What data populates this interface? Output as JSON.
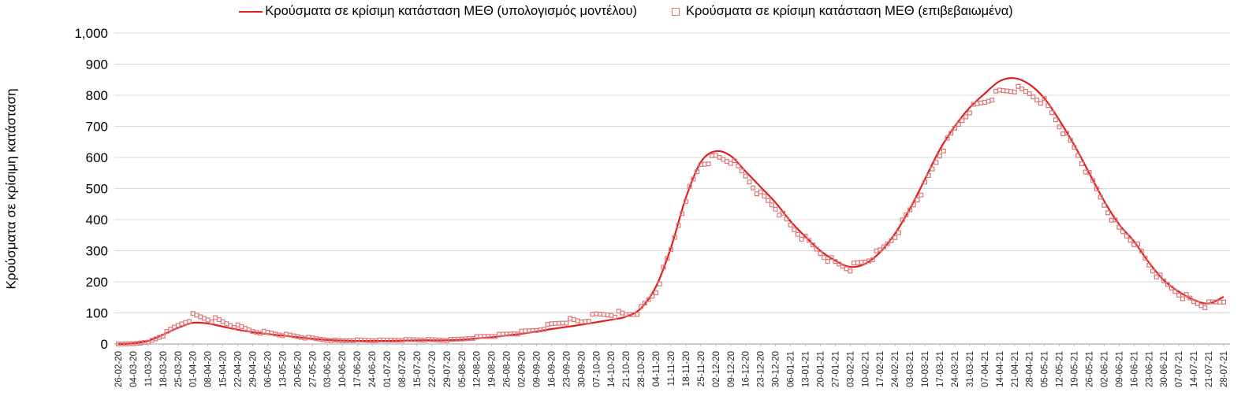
{
  "chart_data": {
    "type": "line",
    "title": "",
    "xlabel": "",
    "ylabel": "Κρούσματα σε κρίσιμη κατάσταση",
    "ylim": [
      0,
      1000
    ],
    "y_ticks": [
      "0",
      "100",
      "200",
      "300",
      "400",
      "500",
      "600",
      "700",
      "800",
      "900",
      "1,000"
    ],
    "grid": true,
    "legend_position": "top",
    "categories": [
      "26-02-20",
      "04-03-20",
      "11-03-20",
      "18-03-20",
      "25-03-20",
      "01-04-20",
      "08-04-20",
      "15-04-20",
      "22-04-20",
      "29-04-20",
      "06-05-20",
      "13-05-20",
      "20-05-20",
      "27-05-20",
      "03-06-20",
      "10-06-20",
      "17-06-20",
      "24-06-20",
      "01-07-20",
      "08-07-20",
      "15-07-20",
      "22-07-20",
      "29-07-20",
      "05-08-20",
      "12-08-20",
      "19-08-20",
      "26-08-20",
      "02-09-20",
      "09-09-20",
      "16-09-20",
      "23-09-20",
      "30-09-20",
      "07-10-20",
      "14-10-20",
      "21-10-20",
      "28-10-20",
      "04-11-20",
      "11-11-20",
      "18-11-20",
      "25-11-20",
      "02-12-20",
      "09-12-20",
      "16-12-20",
      "23-12-20",
      "30-12-20",
      "06-01-21",
      "13-01-21",
      "20-01-21",
      "27-01-21",
      "03-02-21",
      "10-02-21",
      "17-02-21",
      "24-02-21",
      "03-03-21",
      "10-03-21",
      "17-03-21",
      "24-03-21",
      "31-03-21",
      "07-04-21",
      "14-04-21",
      "21-04-21",
      "28-04-21",
      "05-05-21",
      "12-05-21",
      "19-05-21",
      "26-05-21",
      "02-06-21",
      "09-06-21",
      "16-06-21",
      "23-06-21",
      "30-06-21",
      "07-07-21",
      "14-07-21",
      "21-07-21",
      "28-07-21"
    ],
    "series": [
      {
        "name": "Κρούσματα σε κρίσιμη κατάσταση ΜΕΘ (υπολογισμός μοντέλου)",
        "type": "line",
        "color": "#e01f1f",
        "values": [
          0,
          2,
          10,
          30,
          52,
          68,
          66,
          56,
          46,
          38,
          32,
          27,
          22,
          17,
          13,
          11,
          10,
          10,
          10,
          11,
          12,
          12,
          12,
          14,
          18,
          22,
          27,
          33,
          40,
          48,
          55,
          62,
          70,
          78,
          88,
          115,
          185,
          310,
          470,
          585,
          620,
          605,
          555,
          505,
          455,
          395,
          345,
          300,
          268,
          248,
          258,
          295,
          355,
          435,
          530,
          625,
          700,
          760,
          805,
          845,
          855,
          835,
          790,
          720,
          640,
          550,
          460,
          385,
          330,
          262,
          205,
          168,
          142,
          130,
          152
        ]
      },
      {
        "name": "Κρούσματα σε κρίσιμη κατάσταση ΜΕΘ (επιβεβαιωμένα)",
        "type": "scatter-square",
        "color": "#dd7777",
        "values": [
          0,
          1,
          6,
          28,
          60,
          90,
          83,
          70,
          55,
          42,
          36,
          30,
          24,
          18,
          13,
          10,
          12,
          11,
          12,
          13,
          14,
          13,
          12,
          16,
          22,
          26,
          31,
          37,
          45,
          62,
          75,
          72,
          90,
          100,
          93,
          110,
          170,
          300,
          470,
          580,
          600,
          590,
          540,
          480,
          440,
          380,
          335,
          295,
          260,
          245,
          265,
          295,
          350,
          430,
          510,
          610,
          690,
          755,
          780,
          810,
          820,
          805,
          780,
          705,
          630,
          540,
          450,
          370,
          330,
          255,
          195,
          165,
          135,
          125,
          140
        ]
      }
    ],
    "colors": {
      "grid": "#d9d9d9",
      "axis": "#9e9e9e",
      "tick": "#bfbfbf",
      "x_label_text": "#262626",
      "y_label_text": "#000000"
    }
  }
}
